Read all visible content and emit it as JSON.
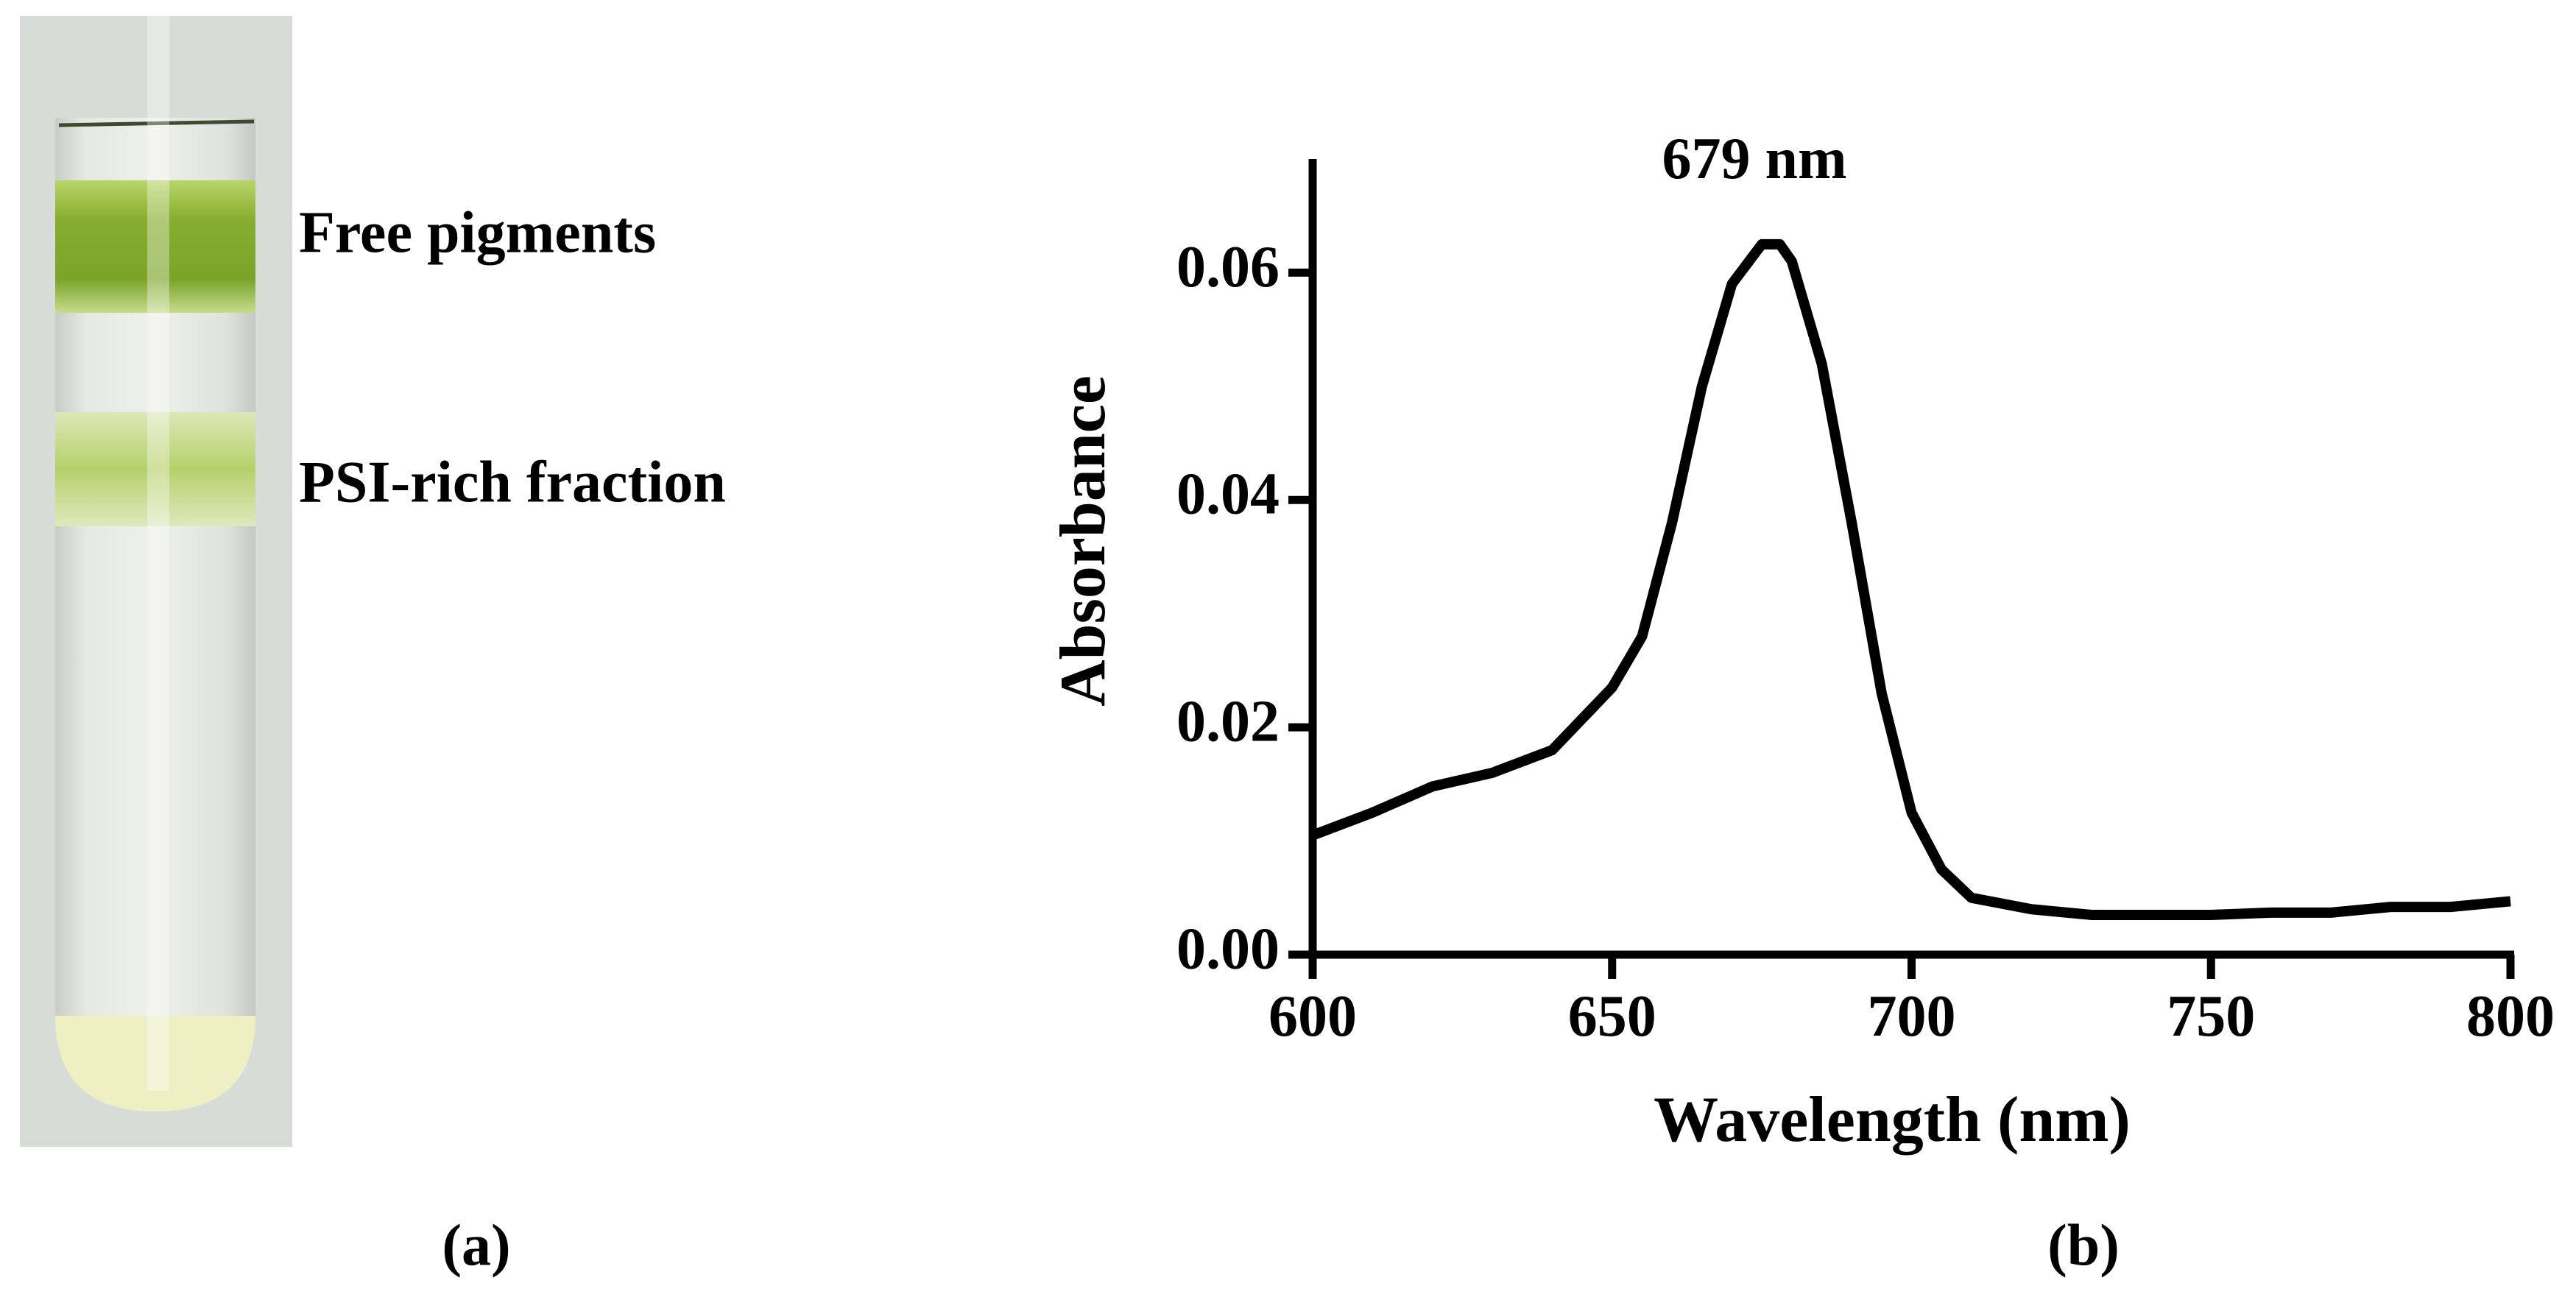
{
  "panel_a": {
    "labels": [
      "Free pigments",
      "PSI-rich  fraction"
    ],
    "caption": "(a)"
  },
  "chart_data": {
    "type": "line",
    "caption": "(b)",
    "annotation": "679 nm",
    "x_label": "Wavelength (nm)",
    "y_label": "Absorbance",
    "x": [
      600,
      610,
      620,
      630,
      640,
      650,
      655,
      660,
      665,
      670,
      675,
      678,
      680,
      685,
      690,
      695,
      700,
      705,
      710,
      720,
      730,
      740,
      750,
      760,
      770,
      780,
      790,
      800
    ],
    "series": [
      {
        "color": "#000000",
        "values": [
          0.0105,
          0.0125,
          0.0148,
          0.016,
          0.018,
          0.0235,
          0.028,
          0.038,
          0.05,
          0.059,
          0.0625,
          0.0625,
          0.061,
          0.052,
          0.038,
          0.023,
          0.0125,
          0.0075,
          0.005,
          0.004,
          0.0035,
          0.0035,
          0.0035,
          0.0037,
          0.0037,
          0.0042,
          0.0042,
          0.0047
        ]
      }
    ],
    "xlim": [
      600,
      800
    ],
    "xticks": [
      600,
      650,
      700,
      750,
      800
    ],
    "ylim": [
      0,
      0.07
    ],
    "yticks": [
      {
        "value": 0,
        "label": "0.00"
      },
      {
        "value": 0.02,
        "label": "0.02"
      },
      {
        "value": 0.04,
        "label": "0.04"
      },
      {
        "value": 0.06,
        "label": "0.06"
      }
    ],
    "grid": false
  }
}
